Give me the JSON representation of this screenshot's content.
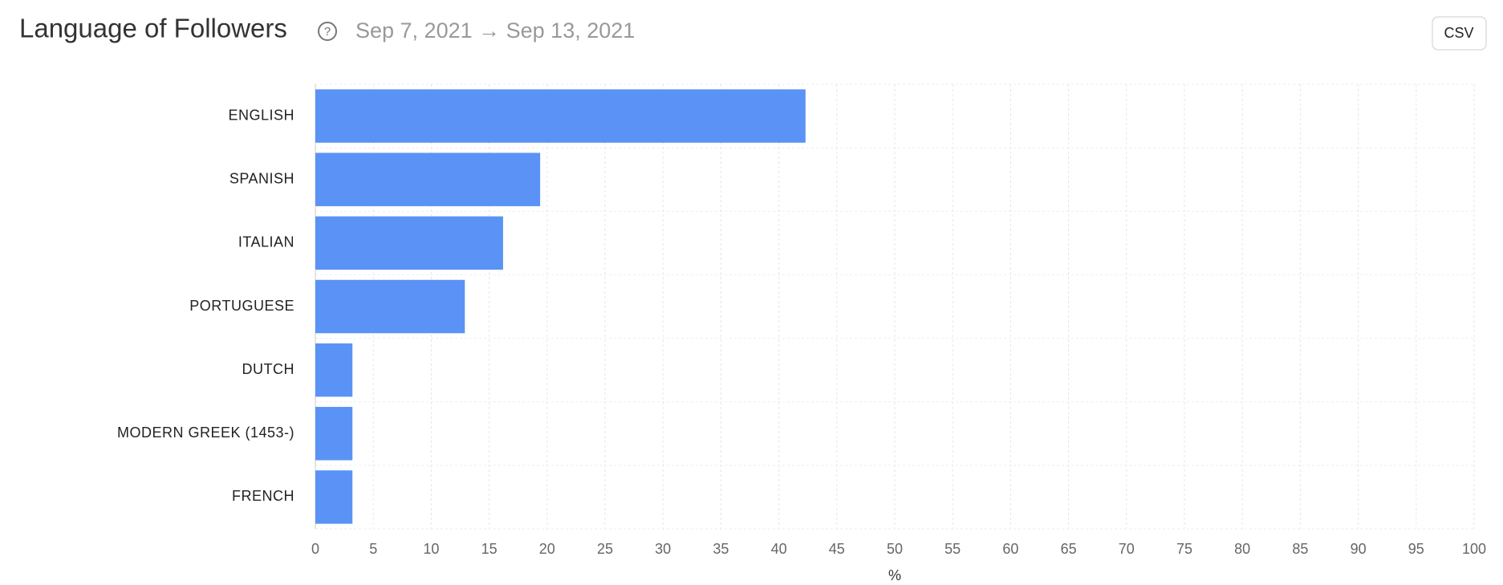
{
  "header": {
    "title": "Language of Followers",
    "date_range": "Sep 7, 2021 → Sep 13, 2021",
    "button": "CSV"
  },
  "chart_data": {
    "type": "bar",
    "orientation": "horizontal",
    "categories": [
      "ENGLISH",
      "SPANISH",
      "ITALIAN",
      "PORTUGUESE",
      "DUTCH",
      "MODERN GREEK (1453-)",
      "FRENCH"
    ],
    "values": [
      42.3,
      19.4,
      16.2,
      12.9,
      3.2,
      3.2,
      3.2
    ],
    "color": "#5a93f5",
    "xlim": [
      0,
      100
    ],
    "xticks": [
      0,
      5,
      10,
      15,
      20,
      25,
      30,
      35,
      40,
      45,
      50,
      55,
      60,
      65,
      70,
      75,
      80,
      85,
      90,
      95,
      100
    ],
    "xlabel": "%",
    "grid": true
  }
}
